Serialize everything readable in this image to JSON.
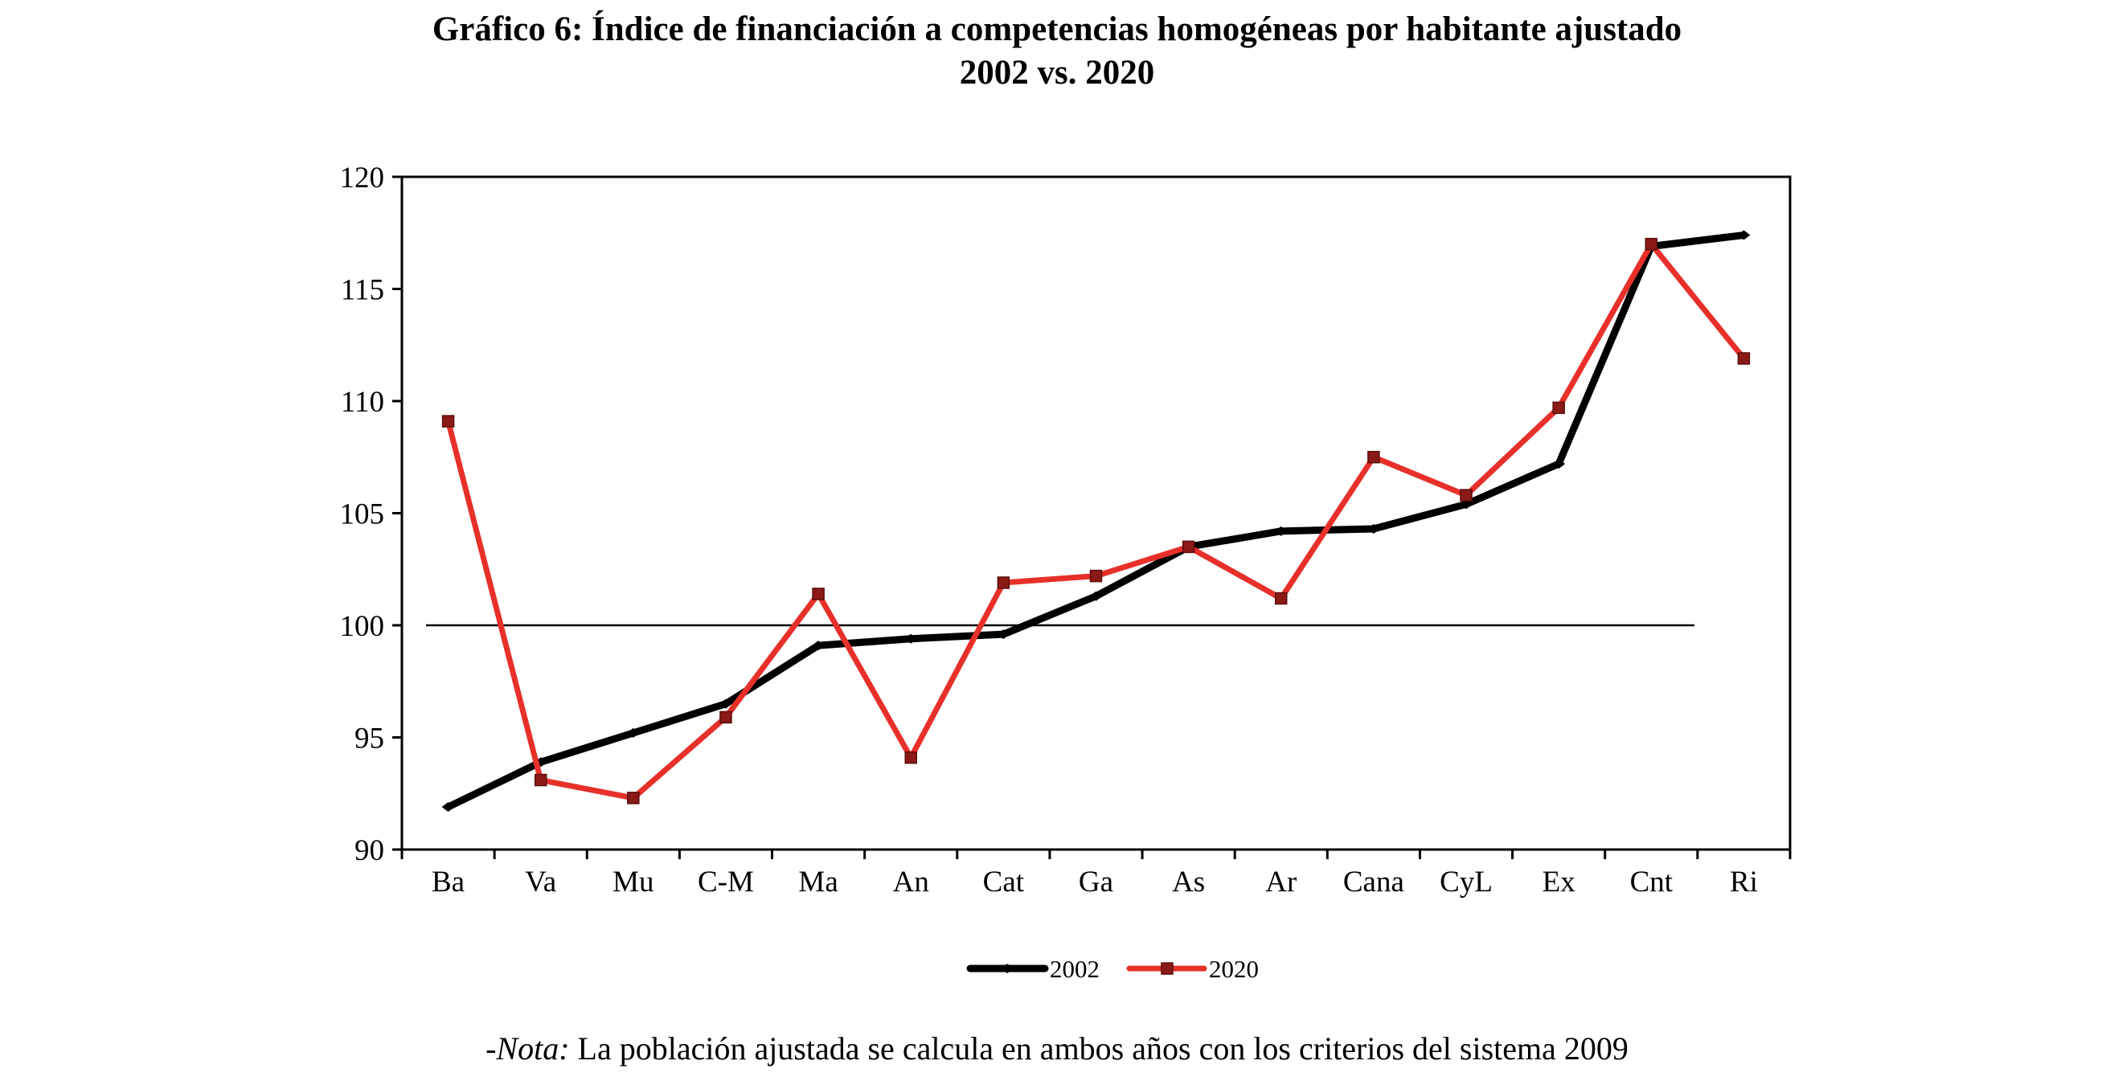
{
  "chart_data": {
    "type": "line",
    "title_line1": "Gráfico 6: Índice de financiación a competencias homogéneas por habitante ajustado",
    "title_line2": "2002 vs. 2020",
    "categories": [
      "Ba",
      "Va",
      "Mu",
      "C-M",
      "Ma",
      "An",
      "Cat",
      "Ga",
      "As",
      "Ar",
      "Cana",
      "CyL",
      "Ex",
      "Cnt",
      "Ri"
    ],
    "series": [
      {
        "name": "2002",
        "color": "#000000",
        "values": [
          91.9,
          93.9,
          95.2,
          96.5,
          99.1,
          99.4,
          99.6,
          101.3,
          103.5,
          104.2,
          104.3,
          105.4,
          107.2,
          116.9,
          117.4
        ]
      },
      {
        "name": "2020",
        "color": "#e8302a",
        "values": [
          109.1,
          93.1,
          92.3,
          95.9,
          101.4,
          94.1,
          101.9,
          102.2,
          103.5,
          101.2,
          107.5,
          105.8,
          109.7,
          117.0,
          111.9
        ]
      }
    ],
    "reference_line": 100,
    "ylim": [
      90,
      120
    ],
    "yticks": [
      "90",
      "95",
      "100",
      "105",
      "110",
      "115",
      "120"
    ],
    "legend_position": "bottom-center",
    "grid": false
  },
  "note": {
    "label": "-Nota:",
    "text": " La población ajustada se calcula en ambos años con los criterios del sistema 2009"
  }
}
